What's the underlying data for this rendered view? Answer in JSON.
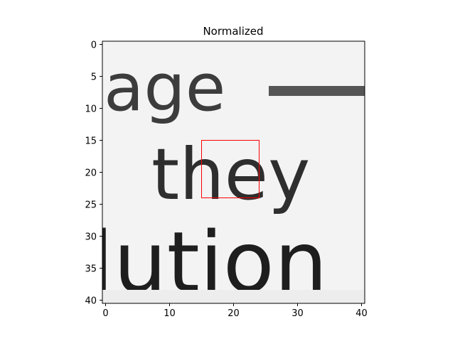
{
  "chart_data": {
    "type": "heatmap",
    "title": "Normalized",
    "xlabel": "",
    "ylabel": "",
    "colormap": "gray",
    "grid": false,
    "image_size": [
      41,
      41
    ],
    "xlim": [
      -0.5,
      40.5
    ],
    "ylim": [
      40.5,
      -0.5
    ],
    "x_ticks": [
      0,
      10,
      20,
      30,
      40
    ],
    "y_ticks": [
      0,
      5,
      10,
      15,
      20,
      25,
      30,
      35,
      40
    ],
    "x_tick_labels": [
      "0",
      "10",
      "20",
      "30",
      "40"
    ],
    "y_tick_labels": [
      "0",
      "5",
      "10",
      "15",
      "20",
      "25",
      "30",
      "35",
      "40"
    ],
    "text_in_image": [
      "age",
      "they",
      "lution"
    ],
    "highlight_box": {
      "x0": 15,
      "y0": 15,
      "x1": 24,
      "y1": 24,
      "color": "#ff0000"
    }
  }
}
